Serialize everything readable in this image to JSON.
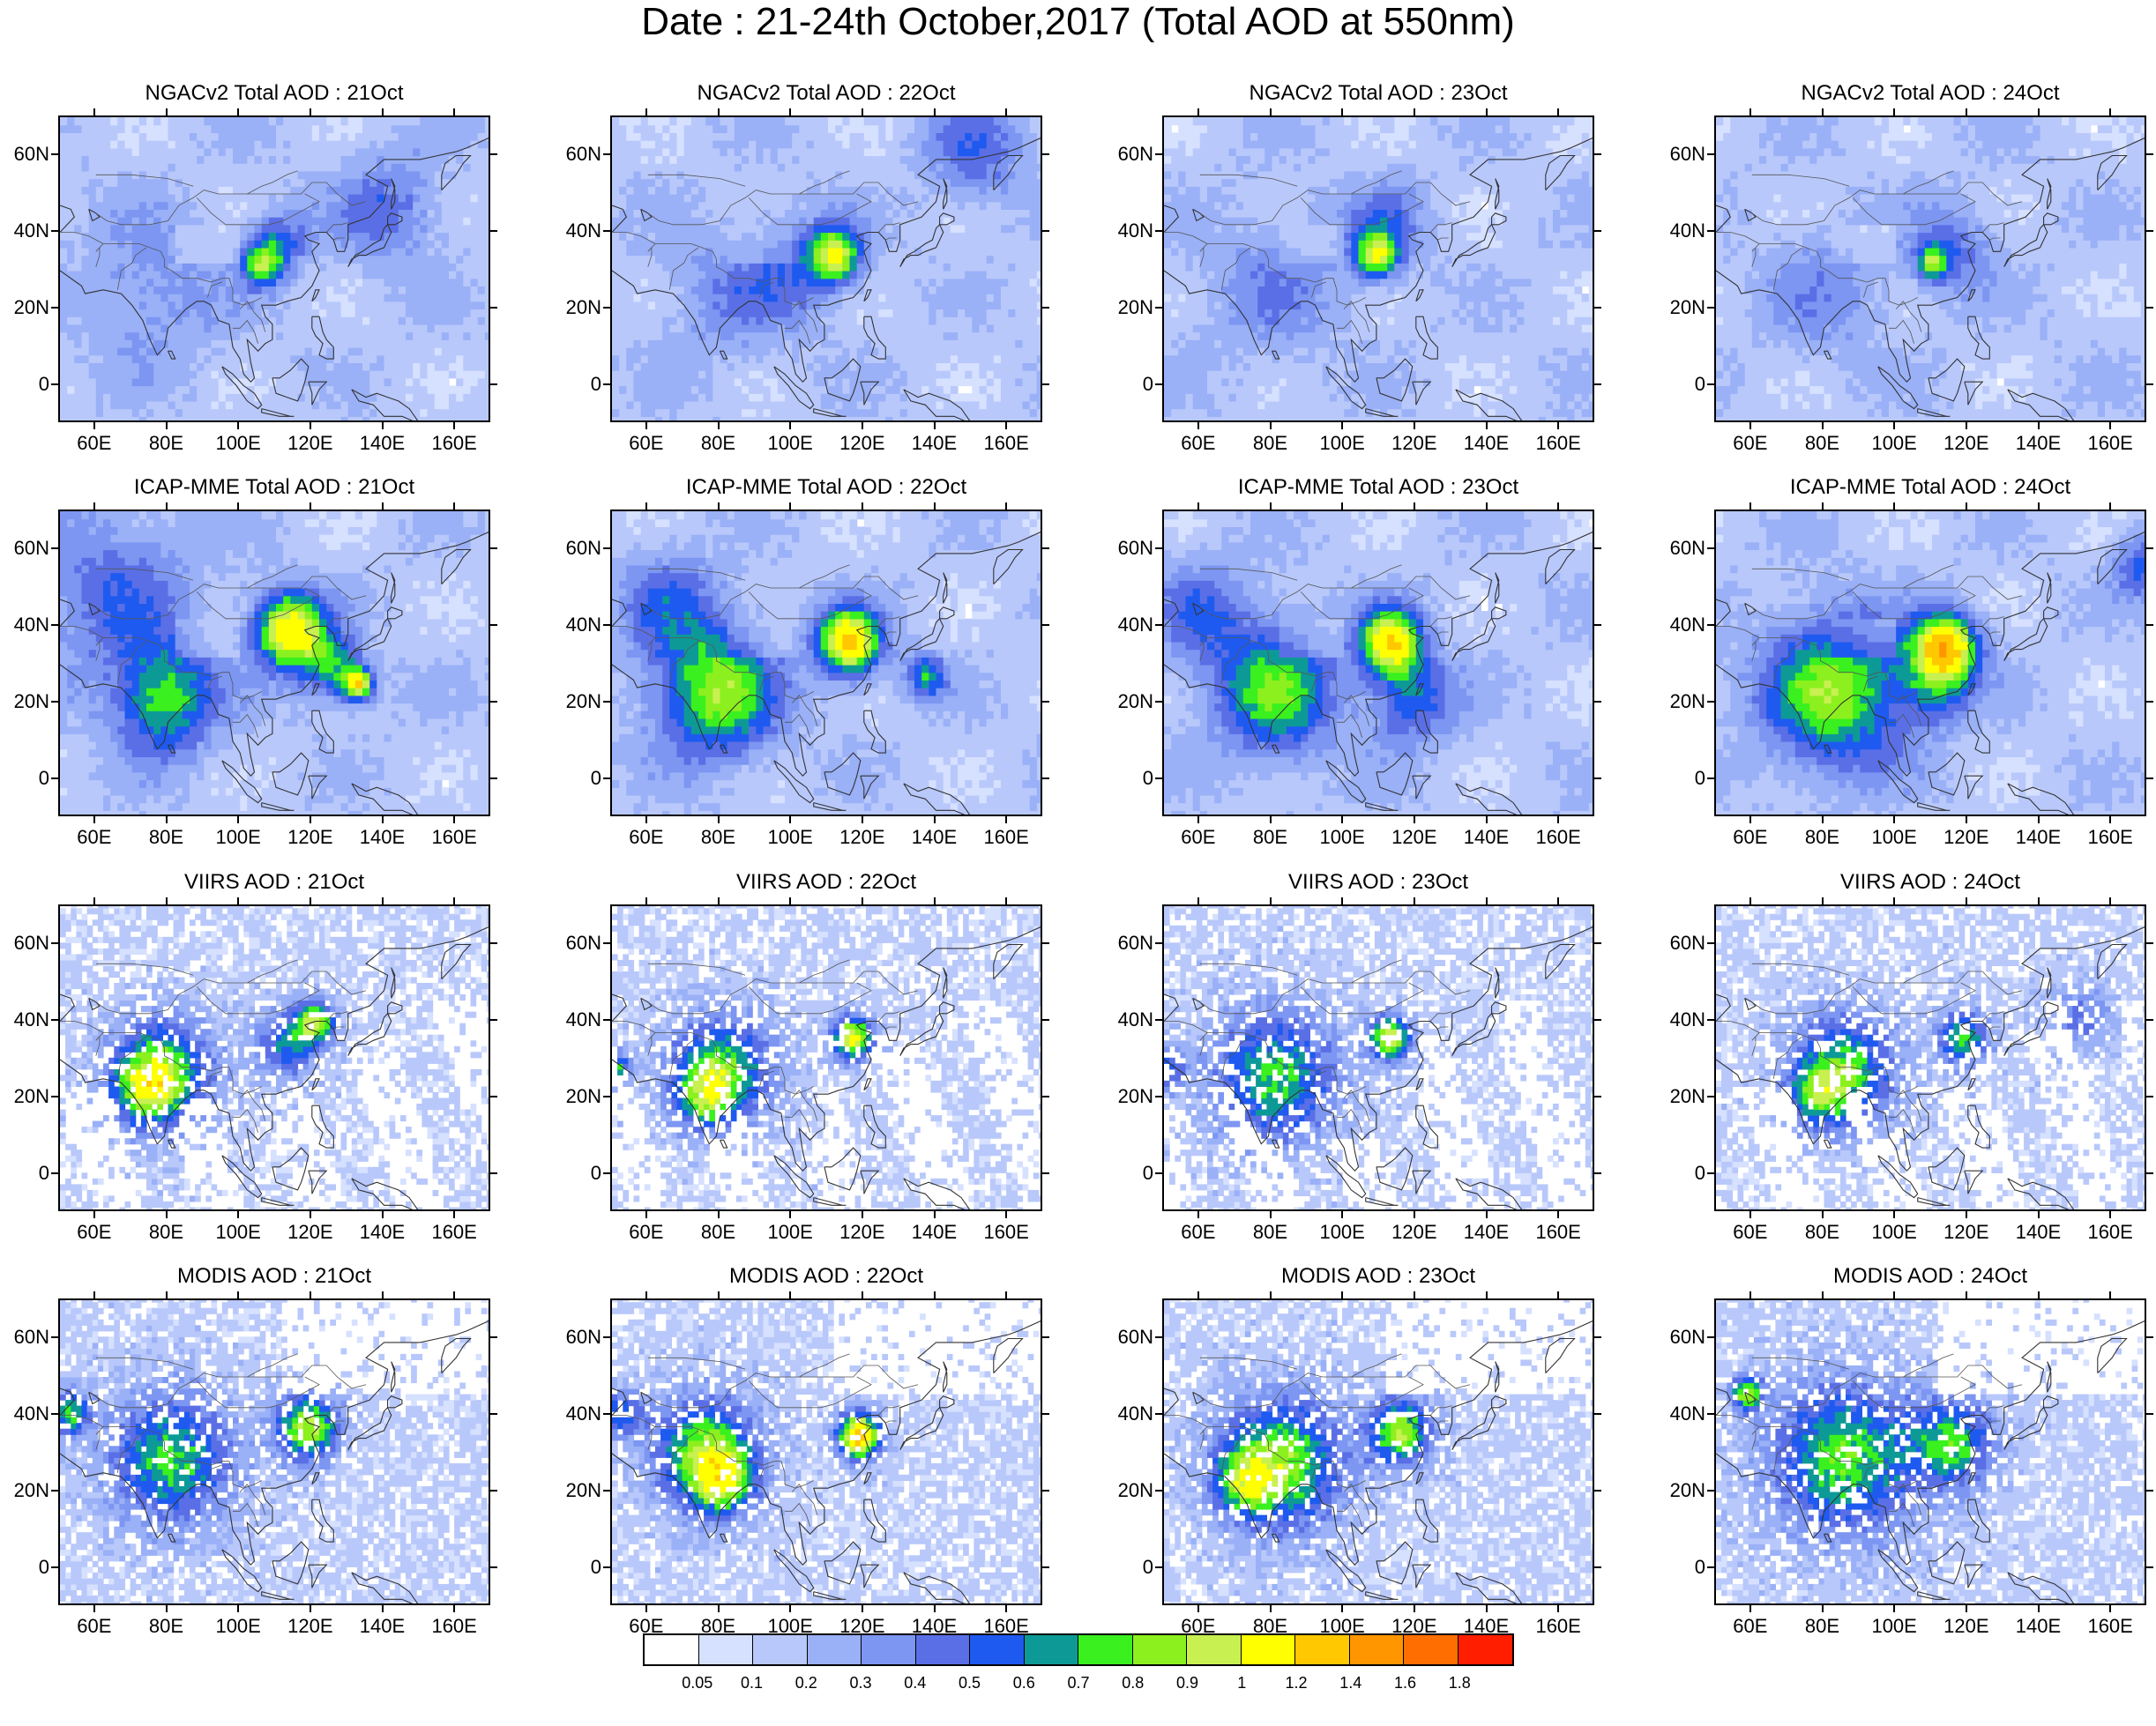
{
  "title": "Date : 21-24th October,2017 (Total AOD at 550nm)",
  "lat_ticks": [
    "60N",
    "40N",
    "20N",
    "0"
  ],
  "lon_ticks": [
    "60E",
    "80E",
    "100E",
    "120E",
    "140E",
    "160E"
  ],
  "rows": [
    {
      "model": "NGACv2",
      "titles": [
        "NGACv2 Total AOD : 21Oct",
        "NGACv2 Total AOD : 22Oct",
        "NGACv2 Total AOD : 23Oct",
        "NGACv2 Total AOD : 24Oct"
      ]
    },
    {
      "model": "ICAP-MME",
      "titles": [
        "ICAP-MME Total AOD : 21Oct",
        "ICAP-MME Total AOD : 22Oct",
        "ICAP-MME Total AOD : 23Oct",
        "ICAP-MME Total AOD : 24Oct"
      ]
    },
    {
      "model": "VIIRS",
      "titles": [
        "VIIRS AOD : 21Oct",
        "VIIRS AOD : 22Oct",
        "VIIRS AOD : 23Oct",
        "VIIRS AOD : 24Oct"
      ]
    },
    {
      "model": "MODIS",
      "titles": [
        "MODIS AOD : 21Oct",
        "MODIS AOD : 22Oct",
        "MODIS AOD : 23Oct",
        "MODIS AOD : 24Oct"
      ]
    }
  ],
  "colorbar": {
    "labels": [
      "0.05",
      "0.1",
      "0.2",
      "0.3",
      "0.4",
      "0.5",
      "0.6",
      "0.7",
      "0.8",
      "0.9",
      "1",
      "1.2",
      "1.4",
      "1.6",
      "1.8"
    ],
    "colors": [
      "#ffffff",
      "#d6e0ff",
      "#b8c8fb",
      "#9ab0f7",
      "#7c96f2",
      "#5a6fe6",
      "#1e5af0",
      "#0d9a96",
      "#3af01e",
      "#8cf01e",
      "#c8f050",
      "#ffff00",
      "#ffc800",
      "#ff9600",
      "#ff6e00",
      "#ff1e00"
    ]
  },
  "map_extent": {
    "lon": [
      50,
      170
    ],
    "lat": [
      -10,
      70
    ]
  }
}
